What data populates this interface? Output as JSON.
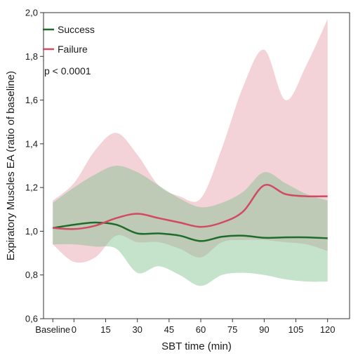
{
  "chart_data": {
    "type": "line",
    "xlabel": "SBT time (min)",
    "ylabel": "Expiratory Muscles EA (ratio of baseline)",
    "categories": [
      "Baseline",
      "0",
      "15",
      "30",
      "45",
      "60",
      "75",
      "90",
      "105",
      "120"
    ],
    "x_points": [
      -10,
      0,
      15,
      30,
      45,
      60,
      75,
      90,
      105,
      120
    ],
    "ylim": [
      0.6,
      2.0
    ],
    "yticks": [
      0.6,
      0.8,
      1.0,
      1.2,
      1.4,
      1.6,
      1.8,
      2.0
    ],
    "ytick_labels": [
      "0,6",
      "0,8",
      "1,0",
      "1,2",
      "1,4",
      "1,6",
      "1,8",
      "2,0"
    ],
    "annotation": "p < 0.0001",
    "grid": false,
    "legend_position": "top-left",
    "series": [
      {
        "name": "Success",
        "color": "#1e6b2a",
        "band_color": "#7fc08c",
        "x": [
          -10,
          0,
          10,
          20,
          30,
          40,
          50,
          60,
          70,
          80,
          90,
          100,
          110,
          120
        ],
        "values": [
          1.015,
          1.03,
          1.04,
          1.03,
          0.99,
          0.99,
          0.98,
          0.955,
          0.975,
          0.98,
          0.97,
          0.972,
          0.972,
          0.968
        ],
        "upper": [
          1.13,
          1.2,
          1.26,
          1.3,
          1.27,
          1.21,
          1.15,
          1.11,
          1.13,
          1.18,
          1.27,
          1.22,
          1.17,
          1.14
        ],
        "lower": [
          0.94,
          0.94,
          0.93,
          0.92,
          0.81,
          0.84,
          0.8,
          0.75,
          0.8,
          0.81,
          0.8,
          0.78,
          0.77,
          0.77
        ]
      },
      {
        "name": "Failure",
        "color": "#d24a62",
        "band_color": "#e8a6b2",
        "x": [
          -10,
          0,
          10,
          20,
          30,
          40,
          50,
          60,
          70,
          80,
          90,
          100,
          110,
          120
        ],
        "values": [
          1.015,
          1.01,
          1.025,
          1.06,
          1.08,
          1.06,
          1.04,
          1.02,
          1.04,
          1.09,
          1.21,
          1.17,
          1.16,
          1.16
        ],
        "upper": [
          1.14,
          1.22,
          1.37,
          1.45,
          1.35,
          1.21,
          1.16,
          1.15,
          1.38,
          1.66,
          1.83,
          1.6,
          1.76,
          1.97
        ],
        "lower": [
          0.94,
          0.86,
          0.88,
          0.98,
          0.95,
          0.95,
          0.92,
          0.88,
          0.95,
          0.96,
          0.96,
          0.95,
          0.94,
          0.91
        ]
      }
    ]
  }
}
